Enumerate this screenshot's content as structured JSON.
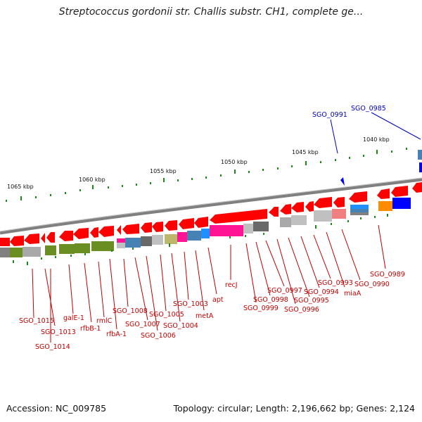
{
  "title": "Streptococcus gordonii str. Challis substr. CH1, complete ge...",
  "footer": {
    "accession": "Accession: NC_009785",
    "summary": "Topology: circular; Length: 2,196,662 bp; Genes: 2,124"
  },
  "kbp_labels": [
    "1065 kbp",
    "1060 kbp",
    "1055 kbp",
    "1050 kbp",
    "1045 kbp",
    "1040 kbp"
  ],
  "blue_labels": [
    "SGO_0991",
    "SGO_0985"
  ],
  "gene_labels": [
    "SGO_1015",
    "SGO_1013",
    "SGO_1014",
    "galE-1",
    "rfbB-1",
    "rmlC",
    "rfbA-1",
    "SGO_1008",
    "SGO_1007",
    "SGO_1006",
    "SGO_1005",
    "SGO_1004",
    "SGO_1003",
    "metA",
    "apt",
    "recJ",
    "SGO_0999",
    "SGO_0998",
    "SGO_0997",
    "SGO_0996",
    "SGO_0995",
    "SGO_0994",
    "SGO_0993",
    "miaA",
    "SGO_0990",
    "SGO_0989"
  ],
  "colors": {
    "gene_arrow": "#ff0000",
    "label_red": "#c00000",
    "label_blue": "#0000c0",
    "backbone": "#808080",
    "tick": "#1a8a1a",
    "olive": "#6b8e23",
    "gray": "#a9a9a9",
    "steelblue": "#4682b4",
    "magenta": "#ff1493",
    "khaki": "#bdb76b",
    "cyan": "#1e90ff",
    "orange": "#ff8c00",
    "blue": "#0000ff",
    "pink": "#f08080"
  }
}
